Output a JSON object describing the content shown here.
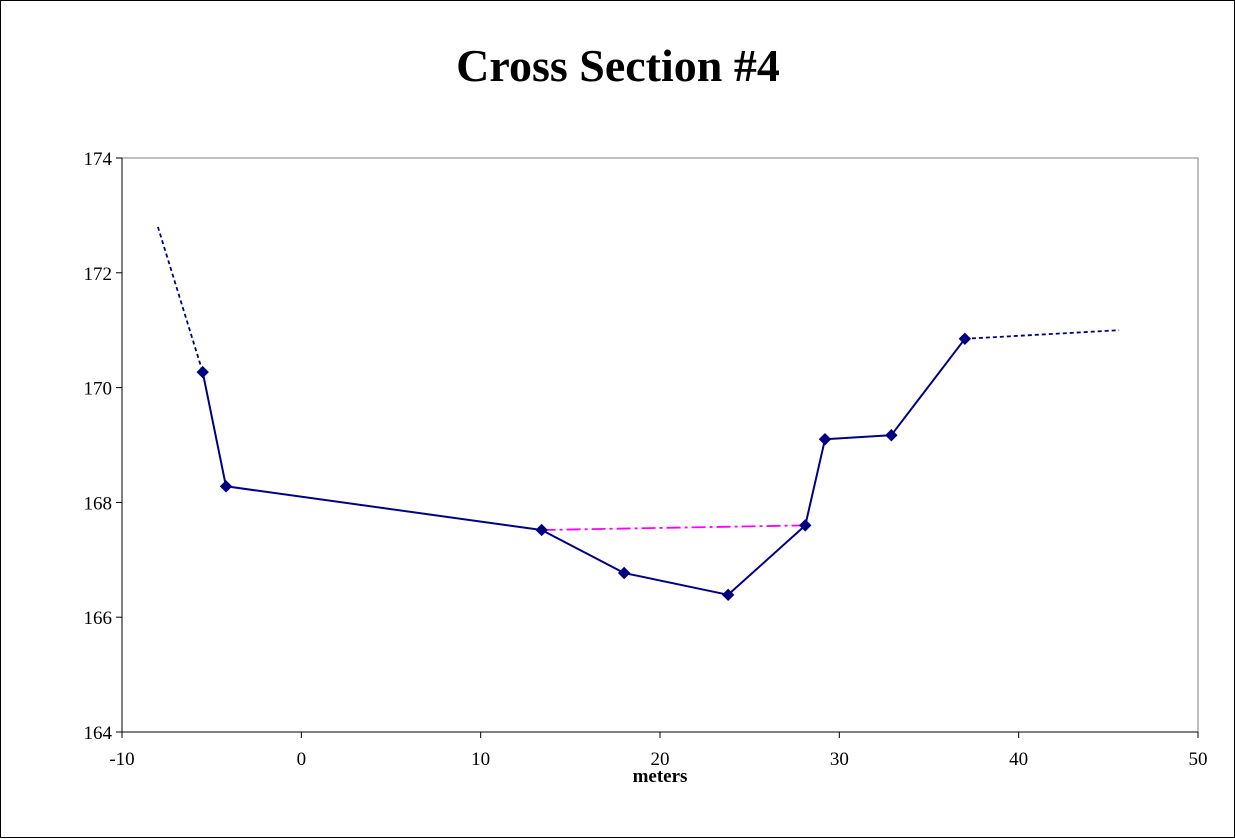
{
  "chart_data": {
    "type": "line",
    "title": "Cross Section #4",
    "xlabel": "meters",
    "ylabel": "",
    "xlim": [
      -10,
      50
    ],
    "ylim": [
      164,
      174
    ],
    "x_ticks": [
      -10,
      0,
      10,
      20,
      30,
      40,
      50
    ],
    "y_ticks": [
      164,
      166,
      168,
      170,
      172,
      174
    ],
    "grid": false,
    "legend": "none",
    "series": [
      {
        "role": "surveyed",
        "style": "solid",
        "markers": "diamond",
        "color": "#000080",
        "points": [
          [
            -5.5,
            170.27
          ],
          [
            -4.2,
            168.28
          ],
          [
            13.4,
            167.52
          ],
          [
            18.0,
            166.77
          ],
          [
            23.8,
            166.39
          ],
          [
            28.1,
            167.6
          ],
          [
            29.2,
            169.1
          ],
          [
            32.9,
            169.17
          ],
          [
            37.0,
            170.85
          ]
        ]
      },
      {
        "role": "left-extension",
        "style": "dotted",
        "markers": "none",
        "color": "#000080",
        "points": [
          [
            -8.0,
            172.8
          ],
          [
            -5.5,
            170.27
          ]
        ]
      },
      {
        "role": "right-extension",
        "style": "dotted",
        "markers": "none",
        "color": "#000080",
        "points": [
          [
            37.0,
            170.85
          ],
          [
            45.6,
            171.0
          ]
        ]
      },
      {
        "role": "water-surface",
        "style": "dash-dot",
        "markers": "none",
        "color": "#FF00FF",
        "points": [
          [
            13.4,
            167.52
          ],
          [
            28.1,
            167.6
          ]
        ]
      }
    ]
  }
}
